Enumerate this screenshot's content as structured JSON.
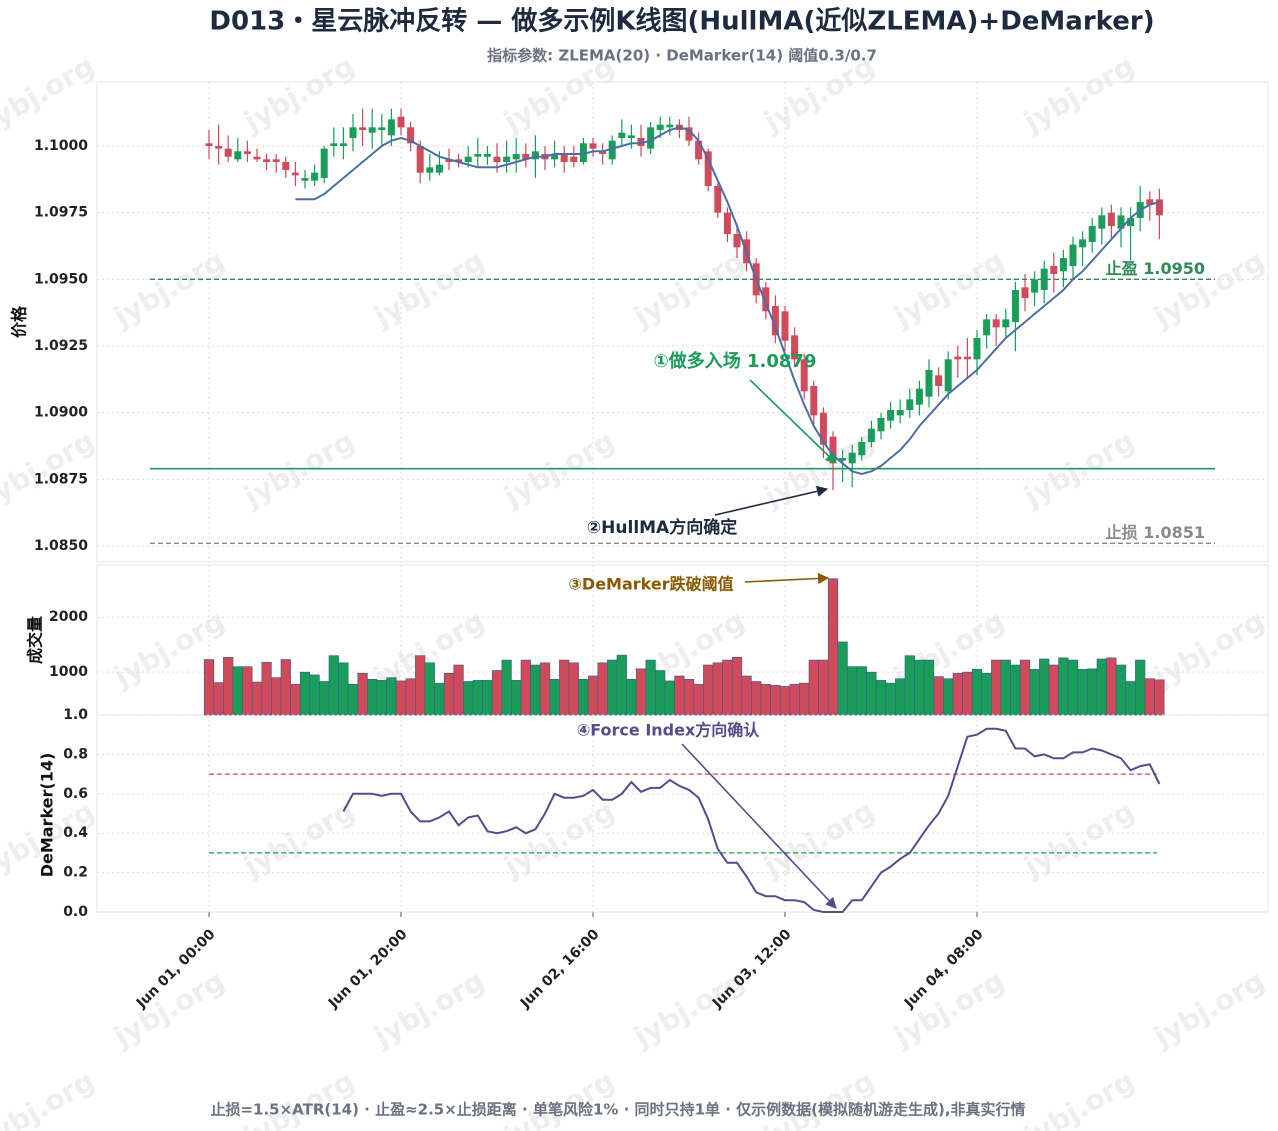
{
  "watermark": "jybj.org",
  "chart_data": [
    {
      "type": "candlestick",
      "title": "D013・星云脉冲反转 — 做多示例K线图(HullMA(近似ZLEMA)+DeMarker)",
      "subtitle": "指标参数: ZLEMA(20) · DeMarker(14) 阈值0.3/0.7",
      "footnote": "止损=1.5×ATR(14) · 止盈≈2.5×止损距离 · 单笔风险1% · 同时只持1单 · 仅示例数据(模拟随机游走生成),非真实行情",
      "ylabel": "价格",
      "up_color": "#1a9c5b",
      "down_color": "#cf4a5a",
      "categories": [
        "Jun 01, 00:00",
        null,
        null,
        null,
        null,
        null,
        null,
        null,
        null,
        null,
        null,
        null,
        null,
        null,
        null,
        null,
        null,
        null,
        null,
        null,
        "Jun 01, 20:00",
        null,
        null,
        null,
        null,
        null,
        null,
        null,
        null,
        null,
        null,
        null,
        null,
        null,
        null,
        null,
        null,
        null,
        null,
        null,
        "Jun 02, 16:00",
        null,
        null,
        null,
        null,
        null,
        null,
        null,
        null,
        null,
        null,
        null,
        null,
        null,
        null,
        null,
        null,
        null,
        null,
        null,
        "Jun 03, 12:00",
        null,
        null,
        null,
        null,
        null,
        null,
        null,
        null,
        null,
        null,
        null,
        null,
        null,
        null,
        null,
        null,
        null,
        null,
        null,
        "Jun 04, 08:00",
        null,
        null,
        null,
        null,
        null,
        null,
        null,
        null,
        null,
        null,
        null,
        null,
        null,
        null,
        null,
        null,
        null,
        null,
        null
      ],
      "open": [
        1.1001,
        1.1,
        1.0999,
        1.0995,
        1.0998,
        1.0996,
        1.0995,
        1.0995,
        1.0994,
        1.099,
        1.0987,
        1.0987,
        1.0988,
        1.1,
        1.1,
        1.1003,
        1.1007,
        1.1005,
        1.1006,
        1.1004,
        1.1011,
        1.1007,
        1.1,
        1.099,
        1.099,
        1.0995,
        1.0995,
        1.0994,
        1.0996,
        1.0996,
        1.0996,
        1.0994,
        1.0995,
        1.0997,
        1.0995,
        1.0997,
        1.0995,
        1.0997,
        1.0996,
        1.0994,
        1.1001,
        1.0998,
        1.0995,
        1.1003,
        1.1003,
        1.1003,
        1.0999,
        1.1006,
        1.1007,
        1.1008,
        1.1007,
        1.1002,
        1.0998,
        1.0985,
        1.0975,
        1.0967,
        1.0965,
        1.0956,
        1.0947,
        1.094,
        1.0938,
        1.0929,
        1.092,
        1.091,
        1.09,
        1.0891,
        1.0882,
        1.0881,
        1.0884,
        1.0889,
        1.0893,
        1.0897,
        1.0899,
        1.0901,
        1.0903,
        1.0906,
        1.0914,
        1.0908,
        1.0921,
        1.0921,
        1.092,
        1.0929,
        1.0935,
        1.0932,
        1.0934,
        1.0947,
        1.0945,
        1.0946,
        1.0955,
        1.0953,
        1.0955,
        1.0962,
        1.0964,
        1.0969,
        1.0975,
        1.0969,
        1.097,
        1.0973,
        1.098,
        1.098
      ],
      "high": [
        1.1006,
        1.1008,
        1.1004,
        1.1003,
        1.1002,
        1.0999,
        1.0997,
        1.0997,
        1.0996,
        1.0994,
        1.0991,
        1.0993,
        1.1,
        1.1007,
        1.1007,
        1.1012,
        1.1014,
        1.1014,
        1.1012,
        1.1014,
        1.1014,
        1.1009,
        1.1002,
        1.0997,
        1.0998,
        1.0999,
        1.0997,
        1.1,
        1.1003,
        1.1,
        1.1001,
        1.1002,
        1.1003,
        1.1001,
        1.1004,
        1.1,
        1.1002,
        1.1,
        1.1,
        1.1003,
        1.1003,
        1.1001,
        1.1004,
        1.101,
        1.1008,
        1.1008,
        1.1009,
        1.1011,
        1.1011,
        1.101,
        1.1011,
        1.1005,
        1.0999,
        1.0986,
        1.0977,
        1.0971,
        1.0968,
        1.0958,
        1.0949,
        1.0944,
        1.094,
        1.0932,
        1.0922,
        1.0912,
        1.0902,
        1.0893,
        1.0886,
        1.0888,
        1.0891,
        1.0897,
        1.09,
        1.0904,
        1.0905,
        1.0909,
        1.0912,
        1.092,
        1.0917,
        1.0923,
        1.0925,
        1.0928,
        1.0931,
        1.0937,
        1.0937,
        1.0939,
        1.0949,
        1.0952,
        1.0953,
        1.0957,
        1.096,
        1.0961,
        1.0966,
        1.0968,
        1.0973,
        1.0977,
        1.0978,
        1.0977,
        1.0977,
        1.0985,
        1.0983,
        1.0984
      ],
      "low": [
        1.0995,
        1.0993,
        1.0994,
        1.0994,
        1.0994,
        1.0994,
        1.0991,
        1.099,
        1.0988,
        1.0985,
        1.0984,
        1.0985,
        1.0986,
        1.0996,
        1.0995,
        1.0998,
        1.1,
        1.0999,
        1.1,
        1.1,
        1.1004,
        1.0998,
        1.0986,
        1.0987,
        1.0989,
        1.0991,
        1.0992,
        1.0992,
        1.0992,
        1.0993,
        1.099,
        1.099,
        1.099,
        1.0992,
        1.0988,
        1.0991,
        1.0992,
        1.099,
        1.0992,
        1.0993,
        1.0996,
        1.0993,
        1.0993,
        1.1,
        1.0999,
        1.0996,
        1.0997,
        1.1003,
        1.1004,
        1.1003,
        1.1,
        1.0993,
        1.0983,
        1.0973,
        1.0964,
        1.0958,
        1.0953,
        1.0941,
        1.0935,
        1.0926,
        1.0923,
        1.0917,
        1.0905,
        1.0895,
        1.0883,
        1.0871,
        1.0874,
        1.0872,
        1.0882,
        1.0887,
        1.089,
        1.0894,
        1.0896,
        1.0898,
        1.0899,
        1.0902,
        1.0906,
        1.0905,
        1.0913,
        1.0913,
        1.0914,
        1.0924,
        1.0925,
        1.0928,
        1.0923,
        1.0938,
        1.094,
        1.0941,
        1.0945,
        1.0947,
        1.095,
        1.0955,
        1.096,
        1.0963,
        1.0965,
        1.0962,
        1.0957,
        1.0968,
        1.0972,
        1.0965
      ],
      "close": [
        1.1,
        1.0999,
        1.0996,
        1.0998,
        1.0997,
        1.0995,
        1.0994,
        1.0994,
        1.0991,
        1.0989,
        1.0988,
        1.099,
        1.0999,
        1.1001,
        1.1001,
        1.1007,
        1.1006,
        1.1007,
        1.1007,
        1.101,
        1.1007,
        1.1001,
        1.099,
        1.0992,
        1.0993,
        1.0994,
        1.0994,
        1.0996,
        1.0997,
        1.0997,
        1.0994,
        1.0996,
        1.0997,
        1.0995,
        1.0998,
        1.0995,
        1.0997,
        1.0994,
        1.0994,
        1.1001,
        1.0999,
        1.0997,
        1.1002,
        1.1005,
        1.1004,
        1.1,
        1.1007,
        1.1008,
        1.1008,
        1.1006,
        1.1002,
        1.0995,
        1.0985,
        1.0975,
        1.0967,
        1.0962,
        1.0956,
        1.0944,
        1.0938,
        1.0929,
        1.0927,
        1.092,
        1.0908,
        1.0899,
        1.0888,
        1.0881,
        1.0883,
        1.0885,
        1.0889,
        1.0894,
        1.0898,
        1.0901,
        1.0901,
        1.0905,
        1.0909,
        1.0916,
        1.091,
        1.092,
        1.092,
        1.092,
        1.0928,
        1.0935,
        1.0932,
        1.0935,
        1.0946,
        1.0943,
        1.095,
        1.0954,
        1.0952,
        1.0958,
        1.0963,
        1.0965,
        1.097,
        1.0974,
        1.097,
        1.0974,
        1.0973,
        1.0979,
        1.0978,
        1.0974
      ],
      "series": [
        {
          "color": "#4a6fa5",
          "values": [
            null,
            null,
            null,
            null,
            null,
            null,
            null,
            null,
            null,
            1.098,
            1.098,
            1.098,
            1.0982,
            1.0985,
            1.0988,
            1.0991,
            1.0994,
            1.0997,
            1.1,
            1.1002,
            1.1003,
            1.1002,
            1.1,
            1.0998,
            1.0996,
            1.0995,
            1.0994,
            1.0993,
            1.0992,
            1.0992,
            1.0992,
            1.0993,
            1.0994,
            1.0995,
            1.0996,
            1.0996,
            1.0997,
            1.0997,
            1.0997,
            1.0997,
            1.0998,
            1.0998,
            1.0999,
            1.1,
            1.1001,
            1.1001,
            1.1002,
            1.1004,
            1.1006,
            1.1007,
            1.1006,
            1.1002,
            1.0995,
            1.0987,
            1.0979,
            1.097,
            1.096,
            1.095,
            1.0941,
            1.0932,
            1.0922,
            1.0912,
            1.0903,
            1.0895,
            1.0889,
            1.0884,
            1.0881,
            1.0878,
            1.0877,
            1.0878,
            1.088,
            1.0883,
            1.0886,
            1.089,
            1.0895,
            1.0899,
            1.0903,
            1.0907,
            1.091,
            1.0913,
            1.0916,
            1.092,
            1.0924,
            1.0928,
            1.0931,
            1.0934,
            1.0937,
            1.094,
            1.0943,
            1.0946,
            1.095,
            1.0953,
            1.0957,
            1.0961,
            1.0965,
            1.0969,
            1.0973,
            1.0976,
            1.0978,
            1.0979
          ]
        }
      ],
      "ylim": [
        1.0844,
        1.1024
      ],
      "yticks": [
        {
          "value": 1.085,
          "label": "1.0850"
        },
        {
          "value": 1.0875,
          "label": "1.0875"
        },
        {
          "value": 1.09,
          "label": "1.0900"
        },
        {
          "value": 1.0925,
          "label": "1.0925"
        },
        {
          "value": 1.095,
          "label": "1.0950"
        },
        {
          "value": 1.0975,
          "label": "1.0975"
        },
        {
          "value": 1.1,
          "label": "1.1000"
        }
      ],
      "grid": true,
      "hlines": [
        {
          "value": 1.095,
          "label": "止盈 1.0950",
          "color": "#2e8b57",
          "style": "dashed"
        },
        {
          "value": 1.0851,
          "label": "止损 1.0851",
          "color": "#8a8a8a",
          "style": "dashed"
        },
        {
          "value": 1.0879,
          "color": "#1a9c5b",
          "style": "solid"
        }
      ],
      "annotations": [
        {
          "text": "①做多入场 1.0879",
          "color": "#1a9c5b"
        },
        {
          "text": "②HullMA方向确定",
          "color": "#1e2a40"
        }
      ]
    },
    {
      "type": "bar",
      "ylabel": "成交量",
      "values": [
        1230,
        810,
        1270,
        1100,
        1100,
        820,
        1180,
        900,
        1230,
        780,
        1000,
        950,
        830,
        1300,
        1170,
        780,
        980,
        870,
        850,
        900,
        840,
        880,
        1300,
        1170,
        800,
        980,
        1130,
        830,
        850,
        850,
        1030,
        1220,
        850,
        1220,
        1130,
        1170,
        870,
        1220,
        1170,
        870,
        930,
        1170,
        1220,
        1310,
        870,
        1060,
        1220,
        1030,
        840,
        930,
        870,
        780,
        1130,
        1170,
        1220,
        1270,
        930,
        830,
        780,
        760,
        740,
        780,
        800,
        1220,
        1220,
        2700,
        1550,
        1100,
        1100,
        1000,
        850,
        800,
        880,
        1300,
        1220,
        1220,
        920,
        880,
        980,
        1000,
        1050,
        980,
        1220,
        1220,
        1130,
        1220,
        1050,
        1240,
        1130,
        1260,
        1220,
        1050,
        1060,
        1240,
        1260,
        1130,
        830,
        1220,
        880,
        860
      ],
      "ylim": [
        220,
        2950
      ],
      "yticks": [
        1000,
        2000
      ],
      "grid": true,
      "annotations": [
        {
          "text": "③DeMarker跌破阈值",
          "color": "#8a5a00"
        }
      ]
    },
    {
      "type": "line",
      "ylabel": "DeMarker(14)",
      "series": [
        {
          "color": "#574b8c",
          "values": [
            null,
            null,
            null,
            null,
            null,
            null,
            null,
            null,
            null,
            null,
            null,
            null,
            null,
            null,
            0.51,
            0.6,
            0.6,
            0.6,
            0.59,
            0.6,
            0.6,
            0.51,
            0.46,
            0.46,
            0.48,
            0.51,
            0.44,
            0.48,
            0.49,
            0.41,
            0.4,
            0.41,
            0.43,
            0.4,
            0.42,
            0.5,
            0.6,
            0.58,
            0.58,
            0.59,
            0.62,
            0.57,
            0.57,
            0.6,
            0.66,
            0.61,
            0.63,
            0.63,
            0.67,
            0.64,
            0.62,
            0.58,
            0.47,
            0.32,
            0.25,
            0.25,
            0.18,
            0.1,
            0.08,
            0.08,
            0.06,
            0.06,
            0.05,
            0.01,
            0.0,
            0.0,
            0.0,
            0.06,
            0.06,
            0.13,
            0.2,
            0.23,
            0.27,
            0.3,
            0.37,
            0.44,
            0.5,
            0.59,
            0.74,
            0.89,
            0.9,
            0.93,
            0.93,
            0.92,
            0.83,
            0.83,
            0.79,
            0.8,
            0.78,
            0.78,
            0.81,
            0.81,
            0.83,
            0.82,
            0.8,
            0.78,
            0.72,
            0.74,
            0.75,
            0.65
          ]
        }
      ],
      "ylim": [
        0,
        1
      ],
      "yticks": [
        {
          "value": 0,
          "label": "0.0"
        },
        0.2,
        0.4,
        0.6,
        0.8,
        {
          "value": 1,
          "label": "1.0"
        }
      ],
      "grid": true,
      "hlines": [
        {
          "value": 0.7,
          "color": "#cf4a5a",
          "style": "dashed"
        },
        {
          "value": 0.3,
          "color": "#1a9c5b",
          "style": "dashed"
        }
      ],
      "annotations": [
        {
          "text": "④Force Index方向确认",
          "color": "#574b8c"
        }
      ]
    }
  ]
}
